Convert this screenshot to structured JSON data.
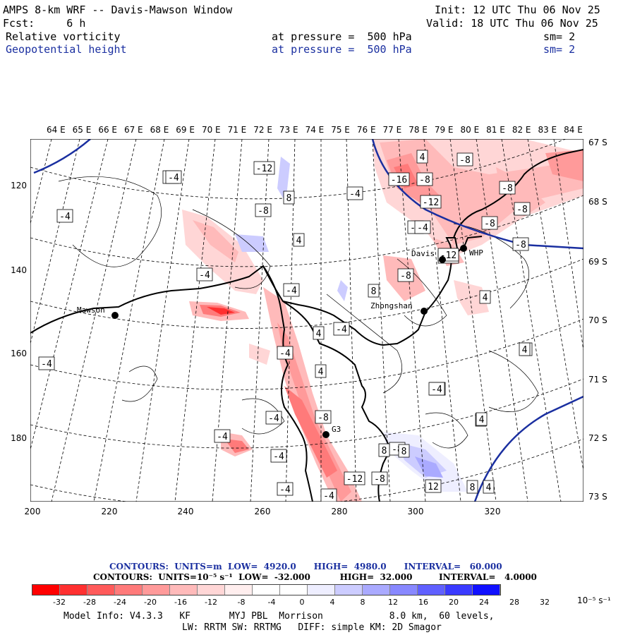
{
  "header": {
    "model_title": "AMPS 8-km WRF -- Davis-Mawson Window",
    "init": "Init: 12 UTC Thu 06 Nov 25",
    "fcst": "Fcst:     6 h",
    "valid": "Valid: 18 UTC Thu 06 Nov 25",
    "field1": {
      "name": "Relative vorticity",
      "level": "at pressure =  500 hPa",
      "smooth": "sm= 2"
    },
    "field2": {
      "name": "Geopotential height",
      "level": "at pressure =  500 hPa",
      "smooth": "sm= 2"
    }
  },
  "lon_labels": [
    "64 E",
    "65 E",
    "66 E",
    "67 E",
    "68 E",
    "69 E",
    "70 E",
    "71 E",
    "72 E",
    "73 E",
    "74 E",
    "75 E",
    "76 E",
    "77 E",
    "78 E",
    "79 E",
    "80 E",
    "81 E",
    "82 E",
    "83 E",
    "84 E"
  ],
  "lat_labels": [
    "67 S",
    "68 S",
    "69 S",
    "70 S",
    "71 S",
    "72 S",
    "73 S"
  ],
  "x_axis": [
    "200",
    "220",
    "240",
    "260",
    "280",
    "300",
    "320"
  ],
  "y_axis": [
    "120",
    "140",
    "160",
    "180"
  ],
  "stations": [
    {
      "name": "Mawson"
    },
    {
      "name": "Davis"
    },
    {
      "name": "WHP"
    },
    {
      "name": "Zhongshan"
    },
    {
      "name": "G3"
    }
  ],
  "contour_labels": [
    "-4",
    "-4",
    "-12",
    "-8",
    "8",
    "-4",
    "4",
    "-4",
    "-4",
    "-8",
    "-4",
    "4",
    "4",
    "-4",
    "-4",
    "-4",
    "-4",
    "-8",
    "-4",
    "-8",
    "4",
    "-8",
    "-4",
    "8",
    "-12",
    "-16",
    "-12",
    "-12",
    "-8",
    "-8",
    "-8",
    "-8",
    "-4",
    "4",
    "-8",
    "-4",
    "8",
    "4",
    "8",
    "4",
    "-4",
    "-4",
    "-4",
    "4",
    "4",
    "12",
    "8",
    "-12",
    "-8",
    "8",
    "-4"
  ],
  "legend": {
    "contours1": "CONTOURS:  UNITS=m  LOW=  4920.0      HIGH=  4980.0      INTERVAL=   60.000",
    "contours2": "CONTOURS:  UNITS=10⁻⁵ s⁻¹  LOW=  -32.000          HIGH=  32.000         INTERVAL=   4.0000",
    "colors": [
      "#ff0000",
      "#ff3030",
      "#ff5a5a",
      "#ff7a7a",
      "#ff9a9a",
      "#ffbaba",
      "#ffd6d6",
      "#ffeeee",
      "#ffffff",
      "#ffffff",
      "#eeeeff",
      "#ccccff",
      "#aaaaff",
      "#8888ff",
      "#6060ff",
      "#3a3aff",
      "#1010ff",
      "#0000ee"
    ],
    "ticks": [
      "-32",
      "-28",
      "-24",
      "-20",
      "-16",
      "-12",
      "-8",
      "-4",
      "0",
      "4",
      "8",
      "12",
      "16",
      "20",
      "24",
      "28",
      "32"
    ],
    "units": "10⁻⁵ s⁻¹"
  },
  "footer": {
    "line1": "Model Info: V4.3.3   KF       MYJ PBL  Morrison            8.0 km,  60 levels,",
    "line2": "LW: RRTM SW: RRTMG   DIFF: simple KM: 2D Smagor"
  }
}
